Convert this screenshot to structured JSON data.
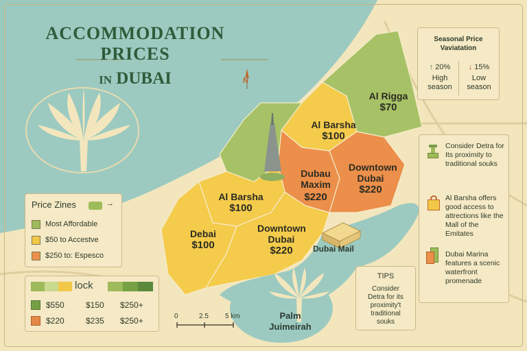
{
  "title": {
    "line1": "ACCOMMODATION PRICES",
    "line2_in": "IN",
    "line2_city": "DUBAI"
  },
  "zones": [
    {
      "name": "Al Rigga",
      "price": "$70"
    },
    {
      "name": "Al Barsha",
      "price": "$100"
    },
    {
      "name": "Dubau Maxim",
      "price": "$220"
    },
    {
      "name": "Downtown Dubai",
      "price": "$220"
    },
    {
      "name": "Al Barsha",
      "price": "$100"
    },
    {
      "name": "Debai",
      "price": "$100"
    },
    {
      "name": "Downtown Dubai",
      "price": "$220"
    }
  ],
  "poi": {
    "dubai_mall": "Dubai Mail",
    "palm": "Palm Juimeirah"
  },
  "compass": "N",
  "seasonal": {
    "title": "Seasonal Price Vaviatation",
    "high": {
      "value": "20%",
      "label": "High season"
    },
    "low": {
      "value": "15%",
      "label": "Low season"
    }
  },
  "legend": {
    "title": "Price Zines",
    "items": [
      {
        "label": "Most Affordable",
        "color": "#9dbb5a"
      },
      {
        "label": "$50 to Accestve",
        "color": "#f2c848"
      },
      {
        "label": "$250 to: Espesco",
        "color": "#ec8f4a"
      }
    ]
  },
  "grid_box": {
    "header": "lock",
    "rows": [
      {
        "color": "#75a044",
        "values": [
          "$550",
          "$150",
          "$250+"
        ]
      },
      {
        "color": "#e48948",
        "values": [
          "$220",
          "$235",
          "$250+"
        ]
      }
    ]
  },
  "scale": {
    "labels": [
      "0",
      "2.5",
      "5 km"
    ]
  },
  "tips_side": [
    {
      "icon": "cup-icon",
      "text": "Consider Detra for Its proximity to traditional souks"
    },
    {
      "icon": "shopping-bag-icon",
      "text": "Al Barsha offers good access to attrections like the Mall of the Emitates"
    },
    {
      "icon": "luggage-icon",
      "text": "Dubai Marina features a scenic waterfront promenade"
    }
  ],
  "tips_box": {
    "title": "TIPS",
    "text": "Consider Detra for its proximity't traditional souks"
  },
  "colors": {
    "water": "#9ccac0",
    "green": "#9dbb5a",
    "yellow": "#f2c848",
    "orange": "#ec8f4a",
    "land": "#f3e6bd",
    "title": "#2f5b3a"
  }
}
